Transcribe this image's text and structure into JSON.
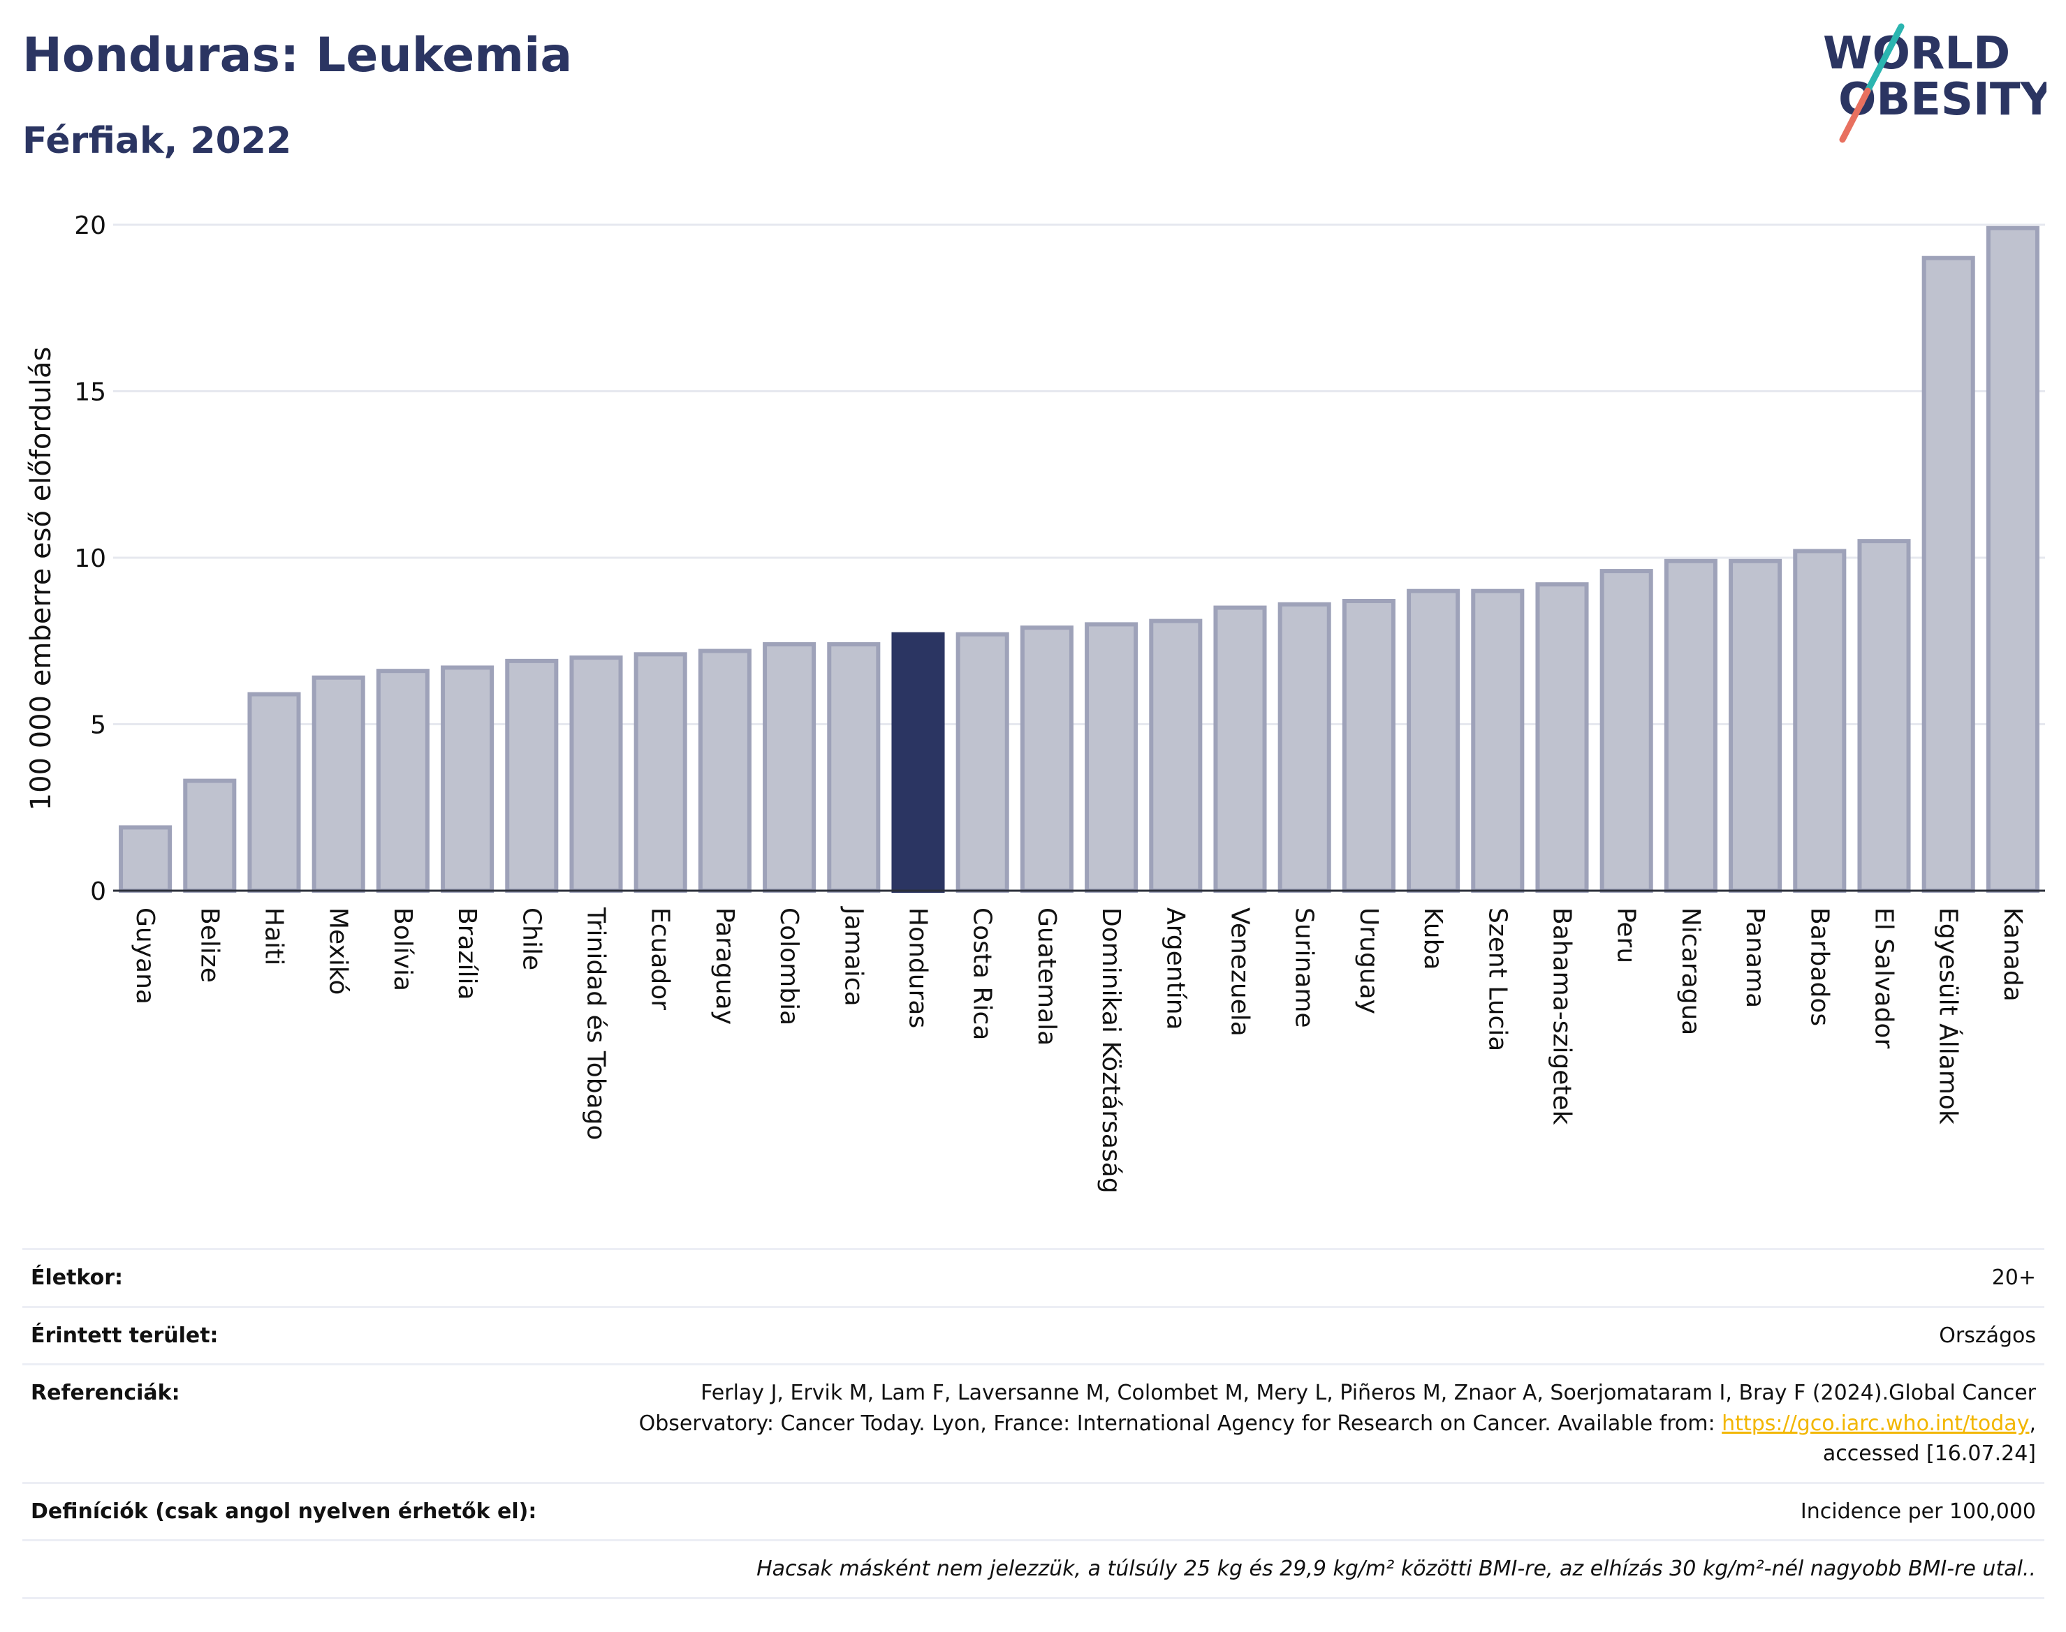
{
  "header": {
    "title": "Honduras: Leukemia",
    "subtitle": "Férfiak, 2022"
  },
  "logo": {
    "line1": "WORLD",
    "line2": "OBESITY",
    "colors": {
      "text": "#2b3562",
      "slash_teal": "#2bb5b0",
      "slash_red": "#e8705f"
    }
  },
  "chart_data": {
    "type": "bar",
    "ylabel": "100 000 emberre eső előfordulás",
    "ylim": [
      0,
      20
    ],
    "yticks": [
      0,
      5,
      10,
      15,
      20
    ],
    "grid": true,
    "highlight": "Honduras",
    "colors": {
      "bar": "#bfc2cf",
      "bar_edge": "#9ea2b9",
      "highlight": "#2b3562",
      "grid": "#e6e8ef"
    },
    "categories": [
      "Guyana",
      "Belize",
      "Haiti",
      "Mexikó",
      "Bolívia",
      "Brazília",
      "Chile",
      "Trinidad és Tobago",
      "Ecuador",
      "Paraguay",
      "Colombia",
      "Jamaica",
      "Honduras",
      "Costa Rica",
      "Guatemala",
      "Dominikai Köztársaság",
      "Argentína",
      "Venezuela",
      "Suriname",
      "Uruguay",
      "Kuba",
      "Szent Lucia",
      "Bahama-szigetek",
      "Peru",
      "Nicaragua",
      "Panama",
      "Barbados",
      "El Salvador",
      "Egyesült Államok",
      "Kanada"
    ],
    "values": [
      1.9,
      3.3,
      5.9,
      6.4,
      6.6,
      6.7,
      6.9,
      7.0,
      7.1,
      7.2,
      7.4,
      7.4,
      7.7,
      7.7,
      7.9,
      8.0,
      8.1,
      8.5,
      8.6,
      8.7,
      9.0,
      9.0,
      9.2,
      9.6,
      9.9,
      9.9,
      10.2,
      10.5,
      19.0,
      19.9
    ]
  },
  "info": {
    "age_label": "Életkor:",
    "age_value": "20+",
    "area_label": "Érintett terület:",
    "area_value": "Országos",
    "ref_label": "Referenciák:",
    "ref_text_1": "Ferlay J, Ervik M, Lam F, Laversanne M, Colombet M, Mery L, Piñeros M, Znaor A, Soerjomataram I, Bray F (2024).Global Cancer Observatory: Cancer Today. Lyon, France: International Agency for Research on Cancer. Available from: ",
    "ref_link": "https://gco.iarc.who.int/today",
    "ref_text_2": ", accessed [16.07.24]",
    "def_label": "Definíciók (csak angol nyelven érhetők el):",
    "def_value": "Incidence per 100,000",
    "note": "Hacsak másként nem jelezzük, a túlsúly 25 kg és 29,9 kg/m² közötti BMI-re, az elhízás 30 kg/m²-nél nagyobb BMI-re utal.."
  }
}
